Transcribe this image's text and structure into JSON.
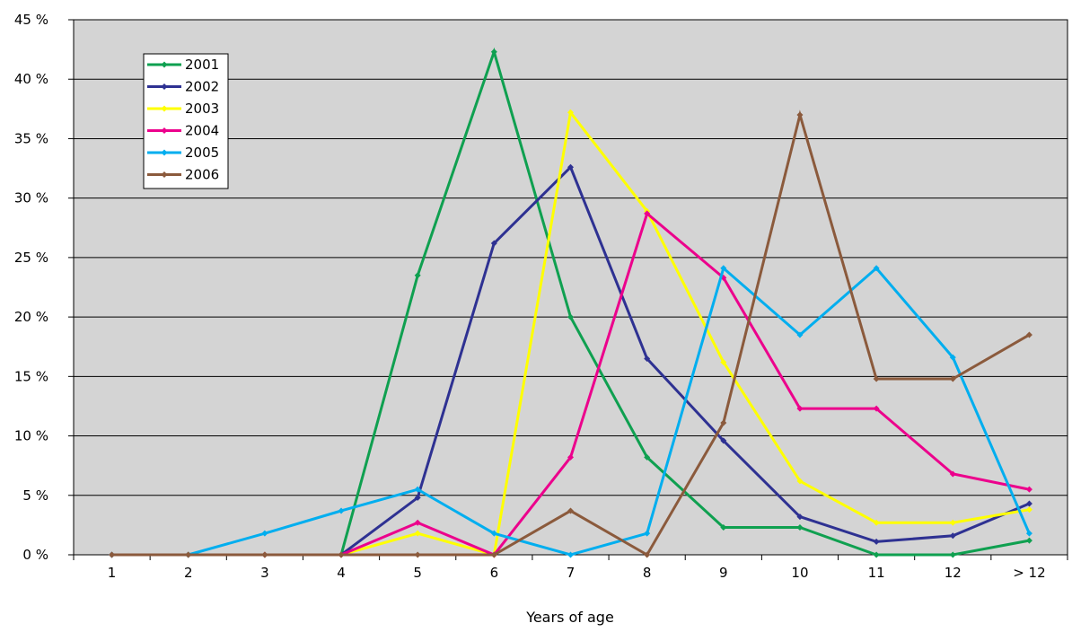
{
  "chart_data": {
    "type": "line",
    "title": "",
    "xlabel": "Years of age",
    "ylabel": "",
    "categories": [
      "1",
      "2",
      "3",
      "4",
      "5",
      "6",
      "7",
      "8",
      "9",
      "10",
      "11",
      "12",
      "> 12"
    ],
    "ylim": [
      0,
      45
    ],
    "yticks": [
      "0 %",
      "5 %",
      "10 %",
      "15 %",
      "20 %",
      "25 %",
      "30 %",
      "35 %",
      "40 %",
      "45 %"
    ],
    "grid": true,
    "legend_position": "top-left",
    "plot_background": "#d4d4d4",
    "series": [
      {
        "name": "2001",
        "color": "#0fa050",
        "values": [
          0,
          0,
          0,
          0,
          23.5,
          42.3,
          20,
          8.2,
          2.3,
          2.3,
          0,
          0,
          1.2
        ]
      },
      {
        "name": "2002",
        "color": "#2e3192",
        "values": [
          0,
          0,
          0,
          0,
          4.8,
          26.2,
          32.6,
          16.5,
          9.6,
          3.2,
          1.1,
          1.6,
          4.3
        ]
      },
      {
        "name": "2003",
        "color": "#ffff00",
        "values": [
          0,
          0,
          0,
          0,
          1.8,
          0,
          37.2,
          28.9,
          16.2,
          6.2,
          2.7,
          2.7,
          3.8
        ]
      },
      {
        "name": "2004",
        "color": "#ec008c",
        "values": [
          0,
          0,
          0,
          0,
          2.7,
          0,
          8.2,
          28.7,
          23.3,
          12.3,
          12.3,
          6.8,
          5.5
        ]
      },
      {
        "name": "2005",
        "color": "#00aeef",
        "values": [
          0,
          0,
          1.8,
          3.7,
          5.5,
          1.8,
          0,
          1.8,
          24.1,
          18.5,
          24.1,
          16.6,
          1.8
        ]
      },
      {
        "name": "2006",
        "color": "#8b5a3c",
        "values": [
          0,
          0,
          0,
          0,
          0,
          0,
          3.7,
          0,
          11.1,
          37.0,
          14.8,
          14.8,
          18.5
        ]
      }
    ]
  }
}
